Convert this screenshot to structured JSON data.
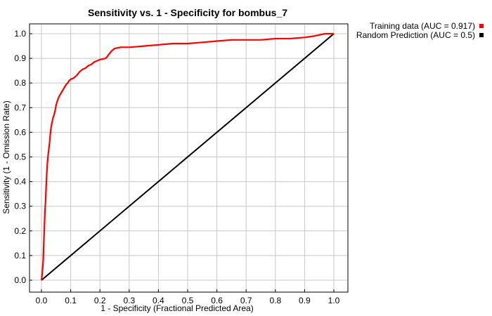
{
  "chart_data": {
    "type": "line",
    "title": "Sensitivity vs. 1 - Specificity for bombus_7",
    "xlabel": "1 - Specificity  (Fractional Predicted Area)",
    "ylabel": "Sensitivity  (1 - Omission Rate)",
    "xlim": [
      0.0,
      1.0
    ],
    "ylim": [
      0.0,
      1.0
    ],
    "xticks": [
      "0.0",
      "0.1",
      "0.2",
      "0.3",
      "0.4",
      "0.5",
      "0.6",
      "0.7",
      "0.8",
      "0.9",
      "1.0"
    ],
    "yticks": [
      "0.0",
      "0.1",
      "0.2",
      "0.3",
      "0.4",
      "0.5",
      "0.6",
      "0.7",
      "0.8",
      "0.9",
      "1.0"
    ],
    "grid": true,
    "legend_position": "top-right, outside plot",
    "series": [
      {
        "name": "Training data (AUC = 0.917)",
        "color": "#ff0000",
        "x": [
          0.0,
          0.003,
          0.006,
          0.008,
          0.01,
          0.012,
          0.014,
          0.016,
          0.018,
          0.02,
          0.022,
          0.025,
          0.028,
          0.03,
          0.033,
          0.036,
          0.04,
          0.043,
          0.047,
          0.05,
          0.055,
          0.06,
          0.065,
          0.07,
          0.075,
          0.08,
          0.085,
          0.09,
          0.095,
          0.1,
          0.11,
          0.12,
          0.13,
          0.14,
          0.15,
          0.16,
          0.17,
          0.18,
          0.19,
          0.2,
          0.22,
          0.24,
          0.25,
          0.27,
          0.3,
          0.35,
          0.4,
          0.45,
          0.5,
          0.55,
          0.6,
          0.65,
          0.7,
          0.75,
          0.8,
          0.85,
          0.9,
          0.93,
          0.95,
          0.97,
          1.0
        ],
        "y": [
          0.0,
          0.03,
          0.08,
          0.15,
          0.22,
          0.28,
          0.32,
          0.38,
          0.43,
          0.47,
          0.5,
          0.53,
          0.56,
          0.59,
          0.62,
          0.64,
          0.66,
          0.67,
          0.69,
          0.71,
          0.73,
          0.745,
          0.755,
          0.765,
          0.775,
          0.785,
          0.795,
          0.8,
          0.81,
          0.815,
          0.82,
          0.83,
          0.845,
          0.855,
          0.86,
          0.87,
          0.875,
          0.885,
          0.89,
          0.895,
          0.9,
          0.93,
          0.94,
          0.945,
          0.945,
          0.95,
          0.955,
          0.96,
          0.96,
          0.965,
          0.97,
          0.975,
          0.975,
          0.975,
          0.98,
          0.98,
          0.985,
          0.99,
          0.995,
          1.0,
          1.0
        ]
      },
      {
        "name": "Random Prediction (AUC = 0.5)",
        "color": "#000000",
        "x": [
          0.0,
          1.0
        ],
        "y": [
          0.0,
          1.0
        ]
      }
    ]
  }
}
